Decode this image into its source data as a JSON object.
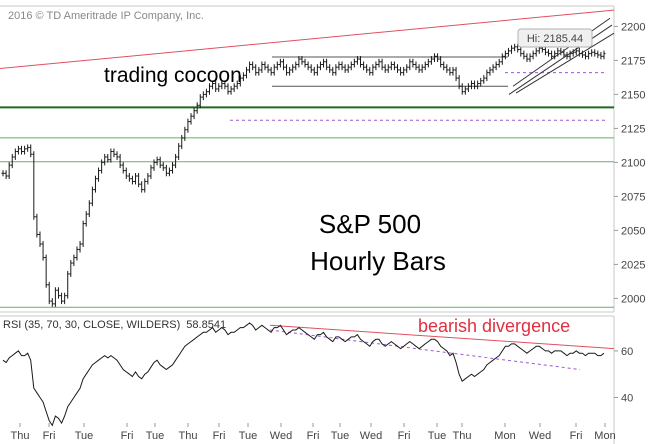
{
  "copyright": "2016 © TD Ameritrade IP Company, Inc.",
  "hi_label": "Hi: 2185.44",
  "annotations": {
    "cocoon": "trading cocoon",
    "title_line1": "S&P 500",
    "title_line2": "Hourly Bars",
    "divergence": "bearish divergence"
  },
  "rsi_header": {
    "params": "RSI (35, 70, 30, CLOSE, WILDERS)",
    "value": "58.8541"
  },
  "colors": {
    "price_bar": "#1a1a1a",
    "support_dark": "#1e6b1e",
    "support_light": "#5cb85c",
    "resistance_trend": "#e05060",
    "channel": "#333333",
    "dashed_level": "#9b59d0",
    "rsi_line": "#1a1a1a",
    "divergence": "#e05060",
    "grid": "#c8c8c8"
  },
  "chart_data": [
    {
      "type": "line",
      "name": "price",
      "ylim": [
        1990,
        2215
      ],
      "yticks": [
        2000,
        2025,
        2050,
        2075,
        2100,
        2125,
        2150,
        2175,
        2200
      ],
      "xticks": [
        "Thu",
        "Fri",
        "Tue",
        "Fri",
        "Tue",
        "Thu",
        "Fri",
        "Tue",
        "Wed",
        "Fri",
        "Tue",
        "Wed",
        "Fri",
        "Tue",
        "Thu",
        "Mon",
        "Wed",
        "Fri",
        "Mon"
      ],
      "hi": 2185.44,
      "support_levels": [
        {
          "value": 2140.5,
          "style": "dark"
        },
        {
          "value": 2118,
          "style": "light"
        },
        {
          "value": 2100.5,
          "style": "light"
        },
        {
          "value": 1993.5,
          "style": "light"
        }
      ],
      "dashed_levels": [
        2166,
        2131
      ],
      "cocoon_levels": [
        2177.5,
        2156
      ],
      "x": [
        0,
        1,
        2,
        3,
        4,
        5,
        6,
        7,
        8,
        9,
        10,
        11,
        12,
        13,
        14,
        15,
        16,
        17,
        18,
        19,
        20,
        21,
        22,
        23,
        24,
        25,
        26,
        27,
        28,
        29,
        30,
        31,
        32,
        33,
        34,
        35,
        36,
        37,
        38,
        39,
        40,
        41,
        42,
        43,
        44,
        45,
        46,
        47,
        48,
        49,
        50,
        51,
        52,
        53,
        54,
        55,
        56,
        57,
        58,
        59,
        60,
        61,
        62,
        63,
        64,
        65,
        66,
        67,
        68,
        69,
        70,
        71,
        72,
        73,
        74,
        75,
        76,
        77,
        78,
        79,
        80,
        81,
        82,
        83,
        84,
        85,
        86,
        87,
        88,
        89,
        90,
        91,
        92,
        93,
        94,
        95,
        96,
        97,
        98,
        99,
        100,
        101,
        102,
        103,
        104,
        105,
        106,
        107,
        108,
        109,
        110,
        111,
        112,
        113,
        114,
        115,
        116,
        117,
        118,
        119,
        120,
        121,
        122,
        123,
        124,
        125,
        126,
        127,
        128,
        129,
        130,
        131,
        132,
        133,
        134,
        135,
        136,
        137,
        138,
        139,
        140,
        141,
        142,
        143,
        144,
        145,
        146,
        147,
        148,
        149,
        150,
        151,
        152,
        153,
        154,
        155,
        156,
        157,
        158,
        159,
        160,
        161,
        162,
        163,
        164,
        165,
        166,
        167,
        168,
        169,
        170,
        171,
        172,
        173,
        174,
        175,
        176,
        177,
        178,
        179,
        180,
        181,
        182,
        183,
        184,
        185,
        186,
        187,
        188,
        189,
        190,
        191,
        192,
        193,
        194,
        195
      ],
      "y": [
        2092,
        2090,
        2098,
        2104,
        2108,
        2110,
        2108,
        2110,
        2111,
        2106,
        2060,
        2047,
        2040,
        2030,
        2010,
        1998,
        1996,
        2006,
        2002,
        1998,
        2002,
        2018,
        2026,
        2030,
        2036,
        2040,
        2055,
        2062,
        2070,
        2080,
        2088,
        2094,
        2100,
        2104,
        2102,
        2108,
        2106,
        2104,
        2098,
        2094,
        2090,
        2088,
        2086,
        2090,
        2084,
        2080,
        2086,
        2090,
        2096,
        2100,
        2102,
        2098,
        2096,
        2092,
        2094,
        2098,
        2104,
        2112,
        2118,
        2124,
        2130,
        2134,
        2138,
        2142,
        2148,
        2150,
        2152,
        2156,
        2158,
        2154,
        2156,
        2158,
        2156,
        2152,
        2154,
        2156,
        2158,
        2162,
        2164,
        2168,
        2172,
        2170,
        2166,
        2168,
        2172,
        2170,
        2168,
        2166,
        2170,
        2172,
        2174,
        2170,
        2166,
        2168,
        2170,
        2172,
        2176,
        2174,
        2172,
        2170,
        2168,
        2166,
        2170,
        2172,
        2174,
        2170,
        2168,
        2166,
        2170,
        2172,
        2170,
        2168,
        2170,
        2172,
        2174,
        2176,
        2172,
        2170,
        2168,
        2166,
        2170,
        2172,
        2174,
        2170,
        2168,
        2170,
        2172,
        2170,
        2168,
        2166,
        2168,
        2170,
        2174,
        2172,
        2170,
        2168,
        2170,
        2172,
        2174,
        2176,
        2178,
        2176,
        2172,
        2170,
        2168,
        2166,
        2168,
        2162,
        2156,
        2152,
        2154,
        2156,
        2158,
        2156,
        2158,
        2160,
        2162,
        2166,
        2168,
        2170,
        2172,
        2174,
        2178,
        2180,
        2182,
        2184,
        2185,
        2183,
        2180,
        2178,
        2176,
        2178,
        2180,
        2182,
        2184,
        2183,
        2181,
        2180,
        2178,
        2180,
        2182,
        2181,
        2179,
        2178,
        2180,
        2181,
        2182,
        2180,
        2179,
        2178,
        2180,
        2181,
        2180,
        2179,
        2178,
        2180
      ]
    },
    {
      "type": "line",
      "name": "RSI",
      "ylim": [
        20,
        75
      ],
      "yticks": [
        40,
        60
      ],
      "divergence_endpoints": [
        [
          135,
          69
        ],
        [
          298,
          60
        ],
        [
          600,
          58
        ]
      ],
      "x": [
        0,
        1,
        2,
        3,
        4,
        5,
        6,
        7,
        8,
        9,
        10,
        11,
        12,
        13,
        14,
        15,
        16,
        17,
        18,
        19,
        20,
        21,
        22,
        23,
        24,
        25,
        26,
        27,
        28,
        29,
        30,
        31,
        32,
        33,
        34,
        35,
        36,
        37,
        38,
        39,
        40,
        41,
        42,
        43,
        44,
        45,
        46,
        47,
        48,
        49,
        50,
        51,
        52,
        53,
        54,
        55,
        56,
        57,
        58,
        59,
        60,
        61,
        62,
        63,
        64,
        65,
        66,
        67,
        68,
        69,
        70,
        71,
        72,
        73,
        74,
        75,
        76,
        77,
        78,
        79,
        80,
        81,
        82,
        83,
        84,
        85,
        86,
        87,
        88,
        89,
        90,
        91,
        92,
        93,
        94,
        95,
        96,
        97,
        98,
        99,
        100,
        101,
        102,
        103,
        104,
        105,
        106,
        107,
        108,
        109,
        110,
        111,
        112,
        113,
        114,
        115,
        116,
        117,
        118,
        119,
        120,
        121,
        122,
        123,
        124,
        125,
        126,
        127,
        128,
        129,
        130,
        131,
        132,
        133,
        134,
        135,
        136,
        137,
        138,
        139,
        140,
        141,
        142,
        143,
        144,
        145,
        146,
        147,
        148,
        149,
        150,
        151,
        152,
        153,
        154,
        155,
        156,
        157,
        158,
        159,
        160,
        161,
        162,
        163,
        164,
        165,
        166,
        167,
        168,
        169,
        170,
        171,
        172,
        173,
        174,
        175,
        176,
        177,
        178,
        179,
        180,
        181,
        182,
        183,
        184,
        185,
        186,
        187,
        188,
        189,
        190,
        191,
        192,
        193,
        194,
        195
      ],
      "y": [
        56,
        55,
        57,
        58,
        59,
        60,
        58,
        58,
        59,
        56,
        44,
        42,
        40,
        38,
        34,
        30,
        28,
        32,
        31,
        29,
        32,
        36,
        38,
        40,
        42,
        44,
        48,
        50,
        52,
        54,
        55,
        56,
        57,
        58,
        57,
        58,
        57,
        56,
        54,
        52,
        51,
        50,
        49,
        51,
        49,
        48,
        50,
        51,
        53,
        55,
        56,
        54,
        53,
        52,
        53,
        54,
        56,
        58,
        60,
        62,
        63,
        64,
        65,
        66,
        67,
        68,
        68,
        69,
        70,
        68,
        69,
        70,
        69,
        67,
        68,
        68,
        69,
        70,
        70,
        71,
        72,
        71,
        69,
        70,
        71,
        70,
        69,
        68,
        70,
        70,
        71,
        69,
        67,
        68,
        69,
        69,
        70,
        69,
        68,
        67,
        66,
        65,
        67,
        67,
        68,
        66,
        65,
        64,
        66,
        66,
        65,
        64,
        65,
        66,
        66,
        67,
        65,
        64,
        63,
        62,
        64,
        65,
        65,
        63,
        62,
        63,
        64,
        63,
        62,
        61,
        62,
        63,
        64,
        63,
        62,
        61,
        62,
        63,
        64,
        65,
        65,
        64,
        62,
        61,
        60,
        58,
        59,
        55,
        50,
        47,
        48,
        49,
        50,
        49,
        50,
        51,
        52,
        54,
        55,
        56,
        57,
        58,
        60,
        62,
        62,
        63,
        63,
        62,
        61,
        60,
        59,
        60,
        61,
        62,
        62,
        61,
        60,
        60,
        59,
        60,
        60,
        60,
        59,
        58,
        59,
        59,
        60,
        59,
        59,
        58,
        59,
        59,
        59,
        58,
        58,
        59
      ]
    }
  ]
}
